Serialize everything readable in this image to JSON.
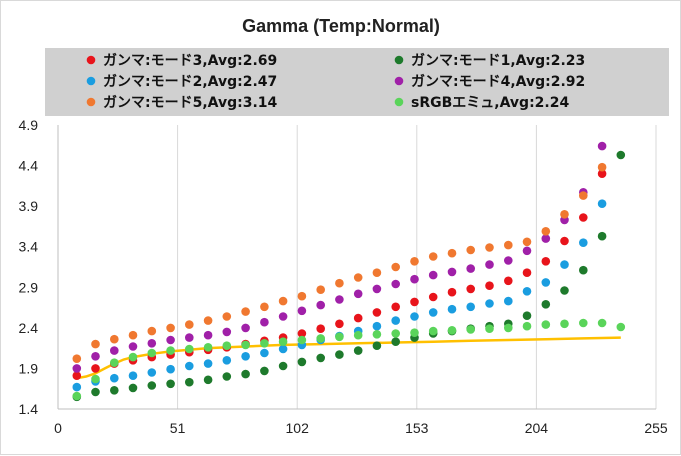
{
  "chart_data": {
    "type": "scatter",
    "title": "Gamma (Temp:Normal)",
    "xlabel": "",
    "ylabel": "",
    "xlim": [
      0,
      255
    ],
    "ylim": [
      1.4,
      4.9
    ],
    "x_ticks": [
      "0",
      "51",
      "102",
      "153",
      "204",
      "255"
    ],
    "y_ticks": [
      "1.4",
      "1.9",
      "2.4",
      "2.9",
      "3.4",
      "3.9",
      "4.4",
      "4.9"
    ],
    "grid": "vertical",
    "legend_position": "top",
    "x": [
      8,
      16,
      24,
      32,
      40,
      48,
      56,
      64,
      72,
      80,
      88,
      96,
      104,
      112,
      120,
      128,
      136,
      144,
      152,
      160,
      168,
      176,
      184,
      192,
      200,
      208,
      216,
      224,
      232,
      240
    ],
    "series": [
      {
        "name": "ガンマ:モード3",
        "avg_label": ",Avg:2.69",
        "color": "#e8141b",
        "values": [
          1.81,
          1.9,
          1.96,
          2.0,
          2.04,
          2.07,
          2.1,
          2.13,
          2.16,
          2.2,
          2.24,
          2.28,
          2.33,
          2.39,
          2.45,
          2.52,
          2.59,
          2.66,
          2.72,
          2.78,
          2.84,
          2.88,
          2.92,
          2.98,
          3.08,
          3.22,
          3.47,
          3.76,
          4.3,
          null
        ]
      },
      {
        "name": "ガンマ:モード1",
        "avg_label": ",Avg:2.23",
        "color": "#1e7a2c",
        "values": [
          1.55,
          1.61,
          1.63,
          1.66,
          1.69,
          1.71,
          1.73,
          1.76,
          1.8,
          1.83,
          1.87,
          1.93,
          1.98,
          2.03,
          2.07,
          2.12,
          2.18,
          2.23,
          2.28,
          2.33,
          2.36,
          2.39,
          2.42,
          2.45,
          2.55,
          2.69,
          2.86,
          3.11,
          3.53,
          4.53
        ]
      },
      {
        "name": "ガンマ:モード2",
        "avg_label": ",Avg:2.47",
        "color": "#1a9de0",
        "values": [
          1.67,
          1.74,
          1.78,
          1.81,
          1.85,
          1.89,
          1.93,
          1.96,
          2.0,
          2.05,
          2.09,
          2.14,
          2.19,
          2.25,
          2.3,
          2.36,
          2.42,
          2.49,
          2.54,
          2.59,
          2.63,
          2.66,
          2.7,
          2.73,
          2.85,
          2.96,
          3.18,
          3.45,
          3.93,
          null
        ]
      },
      {
        "name": "ガンマ:モード4",
        "avg_label": ",Avg:2.92",
        "color": "#a020a8",
        "values": [
          1.9,
          2.05,
          2.12,
          2.17,
          2.21,
          2.25,
          2.28,
          2.31,
          2.35,
          2.4,
          2.47,
          2.54,
          2.61,
          2.68,
          2.75,
          2.82,
          2.88,
          2.94,
          3.0,
          3.05,
          3.09,
          3.13,
          3.18,
          3.23,
          3.35,
          3.5,
          3.73,
          4.07,
          4.64,
          null
        ]
      },
      {
        "name": "ガンマ:モード5",
        "avg_label": ",Avg:3.14",
        "color": "#f07830",
        "values": [
          2.02,
          2.2,
          2.26,
          2.31,
          2.36,
          2.4,
          2.44,
          2.49,
          2.54,
          2.6,
          2.66,
          2.73,
          2.79,
          2.87,
          2.95,
          3.02,
          3.08,
          3.15,
          3.22,
          3.28,
          3.32,
          3.36,
          3.39,
          3.42,
          3.46,
          3.59,
          3.8,
          4.03,
          4.38,
          null
        ]
      },
      {
        "name": "sRGBエミュ",
        "avg_label": ",Avg:2.24",
        "color": "#5ad45a",
        "values": [
          1.56,
          1.77,
          1.97,
          2.04,
          2.09,
          2.12,
          2.14,
          2.16,
          2.18,
          2.19,
          2.21,
          2.23,
          2.25,
          2.27,
          2.29,
          2.31,
          2.32,
          2.33,
          2.34,
          2.36,
          2.37,
          2.38,
          2.39,
          2.4,
          2.42,
          2.44,
          2.45,
          2.46,
          2.46,
          2.41
        ]
      }
    ],
    "reference_line": {
      "color": "#ffc000",
      "x": [
        8,
        12,
        16,
        20,
        24,
        28,
        32,
        40,
        48,
        56,
        64,
        80,
        96,
        112,
        128,
        144,
        160,
        176,
        192,
        208,
        224,
        240
      ],
      "y": [
        1.78,
        1.8,
        1.84,
        1.9,
        1.96,
        2.01,
        2.04,
        2.08,
        2.11,
        2.13,
        2.15,
        2.17,
        2.19,
        2.2,
        2.21,
        2.22,
        2.23,
        2.24,
        2.25,
        2.26,
        2.27,
        2.28
      ]
    }
  }
}
